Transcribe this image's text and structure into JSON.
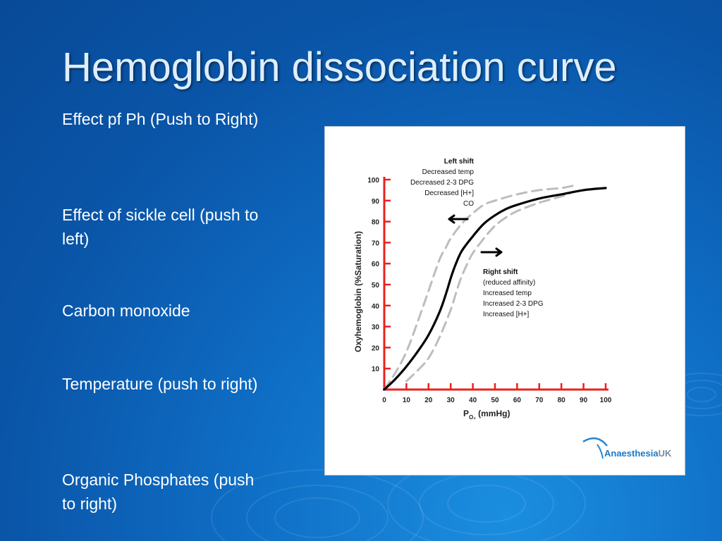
{
  "slide": {
    "title": "Hemoglobin dissociation curve",
    "bullets": [
      "Effect pf Ph  (Push to Right)",
      "Effect of sickle cell (push to left)",
      "Carbon monoxide",
      "Temperature (push to right)",
      "Organic Phosphates (push to right)"
    ]
  },
  "chart_data": {
    "type": "line",
    "title": "",
    "xlabel": "P",
    "xlabel_subscript": "O₂",
    "xlabel_unit": "(mmHg)",
    "ylabel": "Oxyhemoglobin  (%Saturation)",
    "xlim": [
      0,
      100
    ],
    "ylim": [
      0,
      100
    ],
    "x_ticks": [
      0,
      10,
      20,
      30,
      40,
      50,
      60,
      70,
      80,
      90,
      100
    ],
    "y_ticks": [
      10,
      20,
      30,
      40,
      50,
      60,
      70,
      80,
      90,
      100
    ],
    "grid": false,
    "axis_color": "#e8221b",
    "series": [
      {
        "style": "solid",
        "color": "#000000",
        "x": [
          0,
          5,
          10,
          15,
          20,
          25,
          28,
          30,
          32,
          35,
          40,
          45,
          50,
          55,
          60,
          70,
          80,
          90,
          100
        ],
        "y": [
          0,
          5,
          11,
          18,
          26,
          37,
          46,
          53,
          59,
          66,
          73,
          79,
          83,
          86,
          88,
          91,
          93,
          95,
          96
        ]
      },
      {
        "style": "dashed",
        "color": "#bdbdbd",
        "x": [
          0,
          5,
          10,
          15,
          20,
          25,
          28,
          30,
          35,
          40,
          45,
          50,
          60,
          70,
          80,
          85
        ],
        "y": [
          0,
          8,
          18,
          32,
          47,
          62,
          68,
          72,
          79,
          84,
          88,
          90,
          93,
          95,
          96,
          97
        ]
      },
      {
        "style": "dashed",
        "color": "#bdbdbd",
        "x": [
          10,
          15,
          20,
          25,
          30,
          33,
          35,
          38,
          40,
          45,
          50,
          55,
          60,
          70,
          80,
          85
        ],
        "y": [
          4,
          9,
          15,
          25,
          38,
          48,
          54,
          61,
          65,
          72,
          78,
          82,
          85,
          89,
          92,
          94
        ]
      }
    ],
    "annotations": {
      "left_shift": {
        "title": "Left shift",
        "lines": [
          "Decreased temp",
          "Decreased 2-3 DPG",
          "Decreased [H+]",
          "CO"
        ]
      },
      "right_shift": {
        "title": "Right shift",
        "lines": [
          "(reduced affinity)",
          "Increased temp",
          "Increased 2-3 DPG",
          "Increased [H+]"
        ]
      }
    }
  },
  "logo": {
    "name": "Anaesthesia",
    "suffix": "UK"
  }
}
